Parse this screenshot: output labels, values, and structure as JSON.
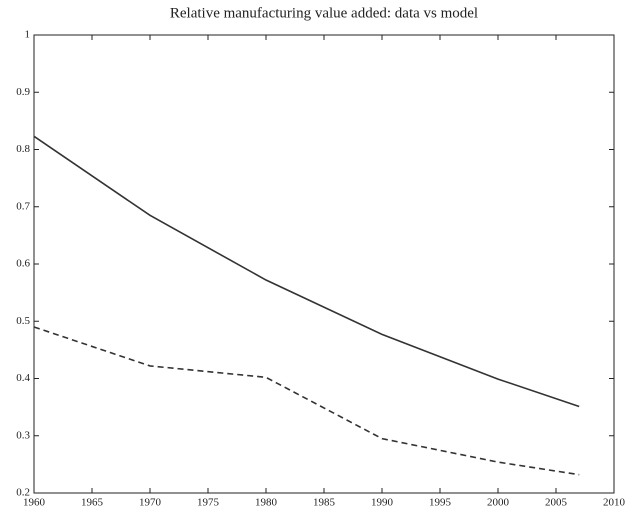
{
  "chart_data": {
    "type": "line",
    "title": "Relative manufacturing value added: data vs model",
    "x": [
      1960,
      1970,
      1980,
      1990,
      2000,
      2007
    ],
    "series": [
      {
        "color": "#333333",
        "style": "solid",
        "values": [
          0.823,
          0.685,
          0.572,
          0.477,
          0.399,
          0.351
        ]
      },
      {
        "color": "#333333",
        "style": "dashed",
        "values": [
          0.49,
          0.422,
          0.402,
          0.295,
          0.254,
          0.232
        ]
      }
    ],
    "xlim": [
      1960,
      2010
    ],
    "xticks": [
      1960,
      1965,
      1970,
      1975,
      1980,
      1985,
      1990,
      1995,
      2000,
      2005,
      2010
    ],
    "ylim": [
      0.2,
      1
    ],
    "yticks": [
      0.2,
      0.3,
      0.4,
      0.5,
      0.6,
      0.7,
      0.8,
      0.9,
      1
    ],
    "grid": false
  }
}
